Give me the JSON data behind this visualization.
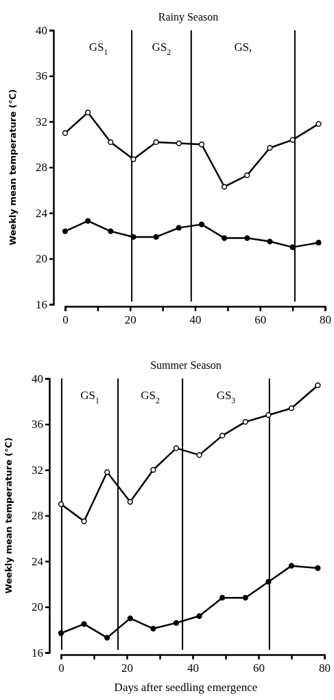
{
  "chart_data": [
    {
      "type": "line",
      "title": "Rainy Season",
      "ylabel": "Weekly mean temperature (℃)",
      "xlim": [
        0,
        80
      ],
      "ylim": [
        16,
        40
      ],
      "xticks": [
        0,
        {
          "value": 10,
          "label": null
        },
        20,
        {
          "value": 30,
          "label": null
        },
        40,
        {
          "value": 50,
          "label": null
        },
        60,
        {
          "value": 70,
          "label": null
        },
        80
      ],
      "yticks": [
        16,
        20,
        24,
        28,
        32,
        36,
        40
      ],
      "marker": "circle",
      "line_style": "solid",
      "grid": false,
      "series": [
        {
          "color": "#000000",
          "x": [
            0,
            7,
            14,
            21,
            28,
            35,
            42,
            49,
            56,
            63,
            70,
            78
          ],
          "values": [
            31.0,
            32.8,
            30.2,
            28.7,
            30.2,
            30.1,
            30.0,
            26.3,
            27.3,
            29.7,
            30.4,
            31.8
          ]
        },
        {
          "color": "#000000",
          "x": [
            0,
            7,
            14,
            21,
            28,
            35,
            42,
            49,
            56,
            63,
            70,
            78
          ],
          "values": [
            22.4,
            23.3,
            22.4,
            21.9,
            21.9,
            22.7,
            23.0,
            21.8,
            21.8,
            21.5,
            21.0,
            21.4
          ]
        }
      ],
      "ref_lines": [
        {
          "axis": "x",
          "value": 20.5
        },
        {
          "axis": "x",
          "value": 38.8
        },
        {
          "axis": "x",
          "value": 70.7
        }
      ],
      "annotations": [
        "GS$_{1}$",
        "GS$_{2}$",
        "GS,"
      ]
    },
    {
      "type": "line",
      "title": "Summer Season",
      "xlabel": "Days after seedling emergence",
      "ylabel": "Weekly mean temperature (℃)",
      "xlim": [
        0,
        80
      ],
      "ylim": [
        16,
        40
      ],
      "xticks": [
        0,
        {
          "value": 10,
          "label": null
        },
        20,
        {
          "value": 30,
          "label": null
        },
        40,
        {
          "value": 50,
          "label": null
        },
        60,
        {
          "value": 70,
          "label": null
        },
        80
      ],
      "yticks": [
        16,
        20,
        24,
        28,
        32,
        36,
        40
      ],
      "marker": "circle",
      "line_style": "solid",
      "grid": false,
      "series": [
        {
          "color": "#000000",
          "x": [
            0,
            7,
            14,
            21,
            28,
            35,
            42,
            49,
            56,
            63,
            70,
            78
          ],
          "values": [
            29.0,
            27.5,
            31.8,
            29.2,
            32.0,
            33.9,
            33.3,
            35.0,
            36.2,
            36.8,
            37.4,
            39.4
          ]
        },
        {
          "color": "#000000",
          "x": [
            0,
            7,
            14,
            21,
            28,
            35,
            42,
            49,
            56,
            63,
            70,
            78
          ],
          "values": [
            17.7,
            18.5,
            17.3,
            19.0,
            18.1,
            18.6,
            19.2,
            20.8,
            20.8,
            22.2,
            23.6,
            23.4
          ]
        }
      ],
      "ref_lines": [
        {
          "axis": "x",
          "value": 0.2
        },
        {
          "axis": "x",
          "value": 17.3
        },
        {
          "axis": "x",
          "value": 36.9
        },
        {
          "axis": "x",
          "value": 63.3
        }
      ],
      "annotations": [
        "GS$_{1}$",
        "GS$_{2}$",
        "GS$_{3}$"
      ]
    }
  ]
}
